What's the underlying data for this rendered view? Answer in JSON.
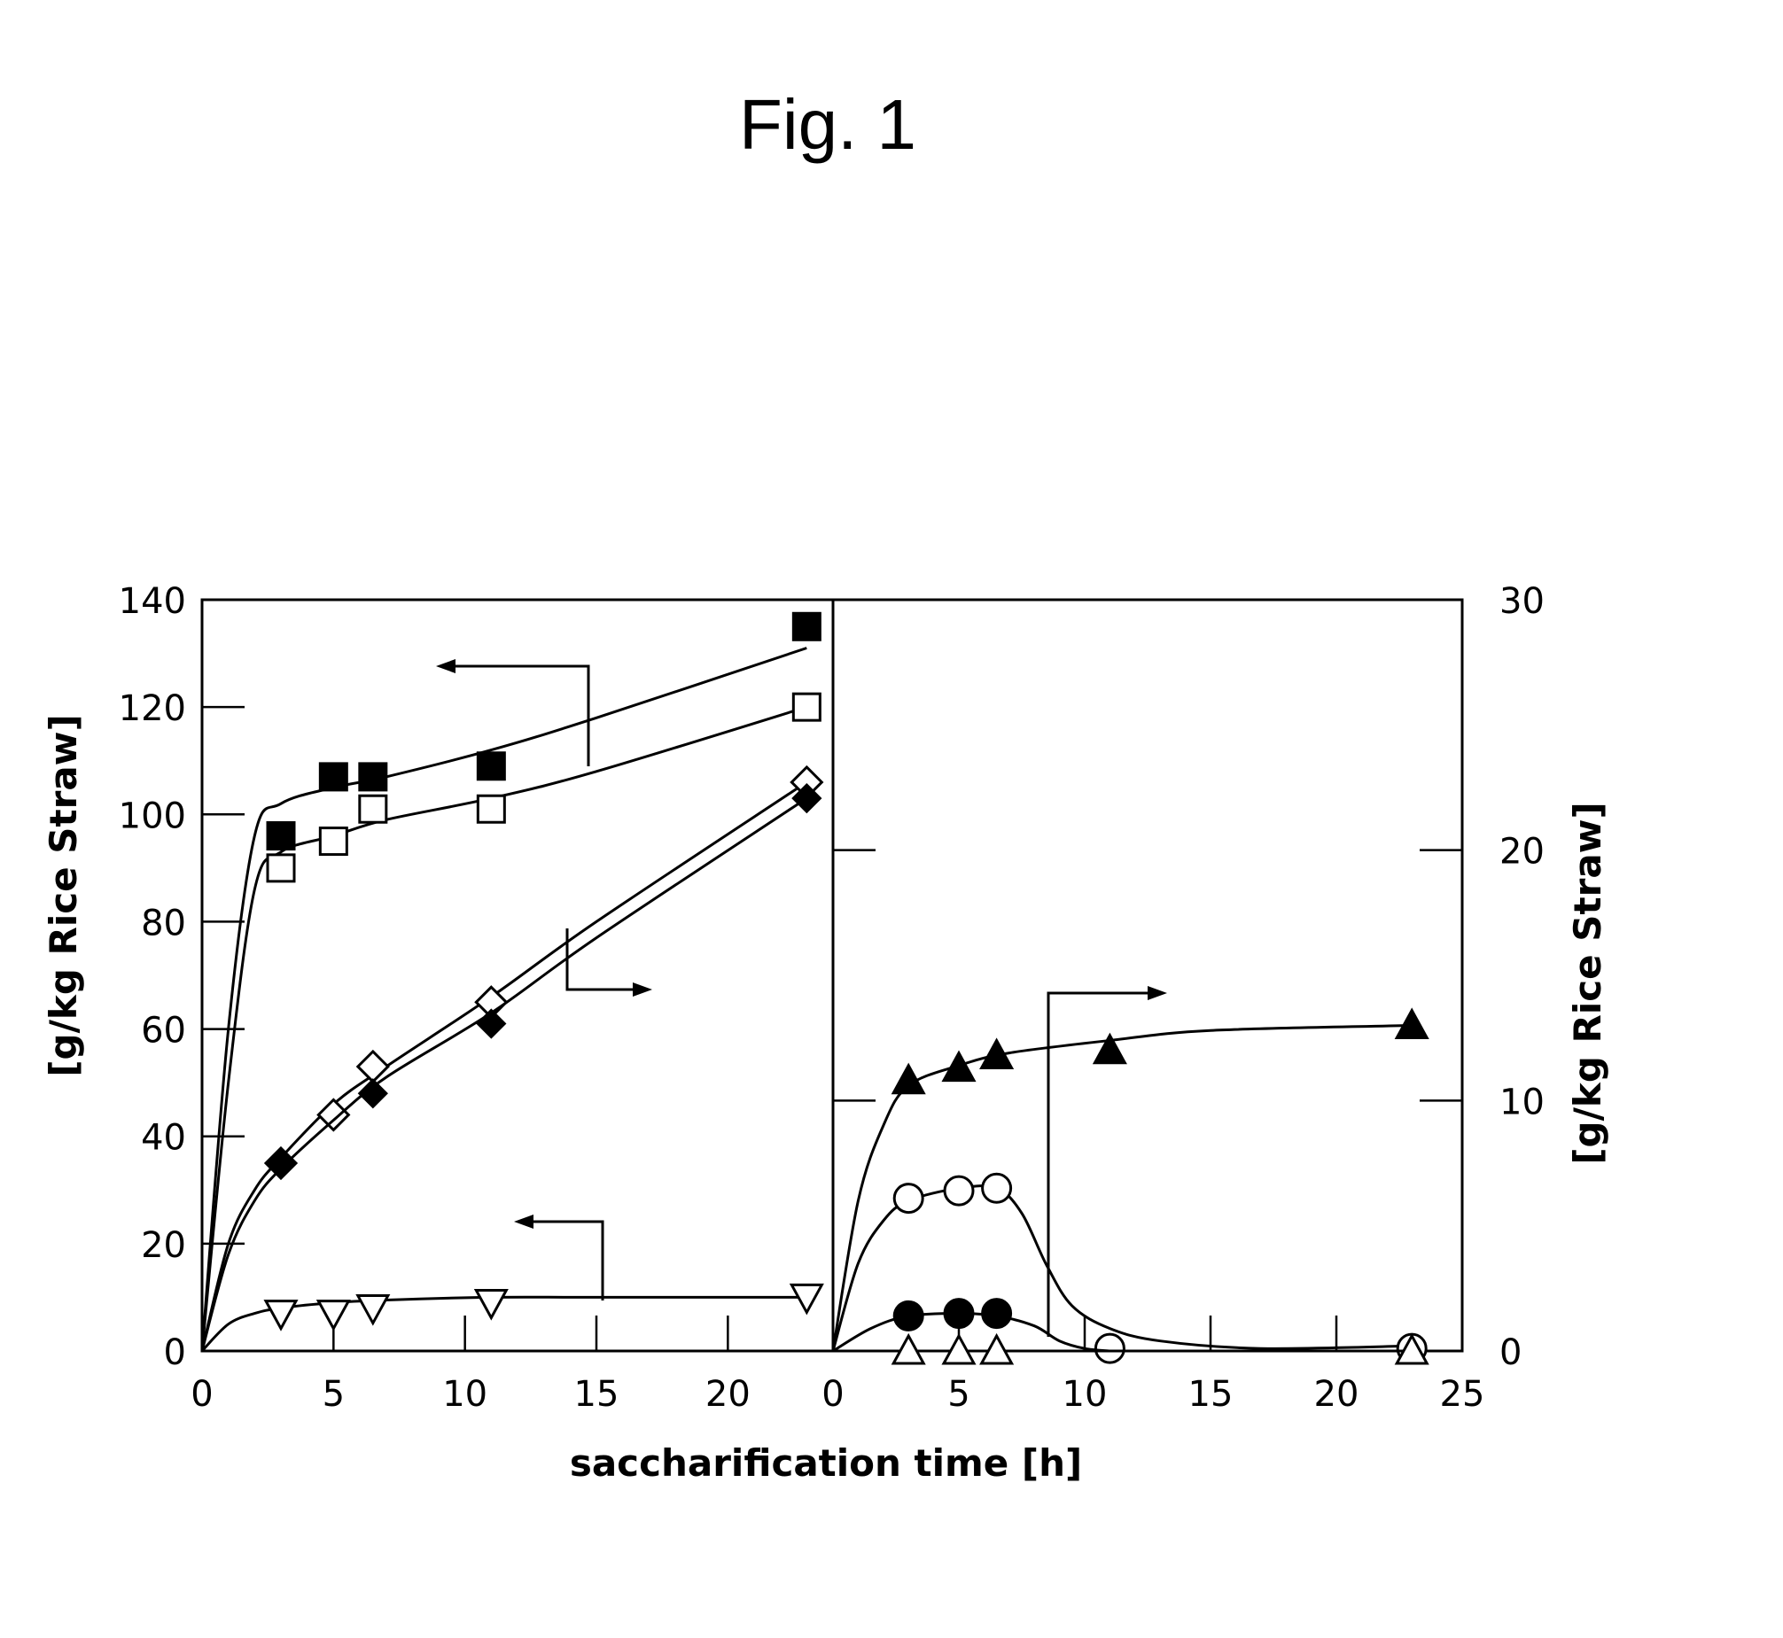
{
  "figure": {
    "title": "Fig. 1"
  },
  "chart_data": {
    "type": "scatter",
    "title": "Fig. 1",
    "xlabel": "saccharification time [h]",
    "ylabel_left": "[g/kg Rice Straw]",
    "ylabel_right": "[g/kg Rice Straw]",
    "panels": [
      {
        "id": "left",
        "xlim": [
          0,
          24
        ],
        "ylim": [
          0,
          140
        ],
        "x_ticks": [
          "0",
          "5",
          "10",
          "15",
          "20"
        ],
        "y_ticks": [
          "0",
          "20",
          "40",
          "60",
          "80",
          "100",
          "120",
          "140"
        ],
        "series": [
          {
            "marker": "filled-square",
            "x": [
              3,
              5,
              6.5,
              11,
              23
            ],
            "y": [
              96,
              107,
              107,
              109,
              135
            ],
            "curve_x": [
              0,
              1,
              2,
              3,
              5,
              7,
              11,
              15,
              23
            ],
            "curve_y": [
              0,
              60,
              96,
              102,
              105,
              107,
              112,
              118,
              131
            ]
          },
          {
            "marker": "open-square",
            "x": [
              3,
              5,
              6.5,
              11,
              23
            ],
            "y": [
              90,
              95,
              101,
              101,
              120
            ],
            "curve_x": [
              0,
              1,
              2,
              3,
              5,
              7,
              11,
              15,
              23
            ],
            "curve_y": [
              0,
              50,
              86,
              93,
              96,
              99,
              103,
              108,
              120
            ]
          },
          {
            "marker": "open-diamond",
            "x": [
              3,
              5,
              6.5,
              11,
              23
            ],
            "y": [
              35,
              44,
              53,
              65,
              106
            ],
            "curve_x": [
              0,
              1,
              2,
              3,
              5,
              7,
              11,
              15,
              23
            ],
            "curve_y": [
              0,
              20,
              30,
              36,
              46,
              53,
              66,
              80,
              106
            ]
          },
          {
            "marker": "filled-diamond",
            "x": [
              3,
              6.5,
              11,
              23
            ],
            "y": [
              35,
              48,
              61,
              103
            ],
            "curve_x": [
              0,
              1,
              2,
              3,
              5,
              7,
              11,
              15,
              23
            ],
            "curve_y": [
              0,
              18,
              28,
              34,
              43,
              51,
              63,
              77,
              103
            ]
          },
          {
            "marker": "open-triangle-down",
            "x": [
              3,
              5,
              6.5,
              11,
              23
            ],
            "y": [
              7,
              7,
              8,
              9,
              10
            ],
            "curve_x": [
              0,
              1,
              2,
              3,
              5,
              7,
              11,
              15,
              23
            ],
            "curve_y": [
              0,
              5,
              7,
              8,
              9,
              9.5,
              10,
              10,
              10
            ]
          }
        ]
      },
      {
        "id": "right",
        "xlim": [
          0,
          25
        ],
        "ylim": [
          0,
          30
        ],
        "x_ticks": [
          "0",
          "5",
          "10",
          "15",
          "20",
          "25"
        ],
        "y_ticks": [
          "0",
          "10",
          "20",
          "30"
        ],
        "series": [
          {
            "marker": "filled-triangle-up",
            "x": [
              3,
              5,
              6.5,
              11,
              23
            ],
            "y": [
              10.8,
              11.3,
              11.8,
              12.0,
              13.0
            ],
            "curve_x": [
              0,
              1,
              2,
              3,
              5,
              7,
              11,
              15,
              23
            ],
            "curve_y": [
              0,
              6,
              9,
              10.6,
              11.4,
              11.9,
              12.4,
              12.8,
              13.0
            ]
          },
          {
            "marker": "open-circle",
            "x": [
              3,
              5,
              6.5,
              11,
              23
            ],
            "y": [
              6.1,
              6.4,
              6.5,
              0.1,
              0.1
            ],
            "curve_x": [
              0,
              1,
              2,
              3,
              5,
              6.5,
              7.5,
              8.5,
              9.5,
              11,
              13,
              17,
              23
            ],
            "curve_y": [
              0,
              3.5,
              5.2,
              6.0,
              6.5,
              6.5,
              5.5,
              3.4,
              1.8,
              0.9,
              0.4,
              0.1,
              0.2
            ]
          },
          {
            "marker": "filled-circle",
            "x": [
              3,
              5,
              6.5
            ],
            "y": [
              1.4,
              1.5,
              1.5
            ],
            "curve_x": [
              0,
              1.5,
              3,
              5,
              6.5,
              8,
              9,
              10,
              11
            ],
            "curve_y": [
              0,
              0.9,
              1.4,
              1.5,
              1.4,
              1.0,
              0.4,
              0.1,
              0
            ]
          },
          {
            "marker": "open-triangle-up",
            "x": [
              3,
              5,
              6.5,
              23
            ],
            "y": [
              0,
              0,
              0,
              0
            ],
            "curve_x": [
              0,
              23
            ],
            "curve_y": [
              0,
              0
            ]
          }
        ]
      }
    ]
  }
}
